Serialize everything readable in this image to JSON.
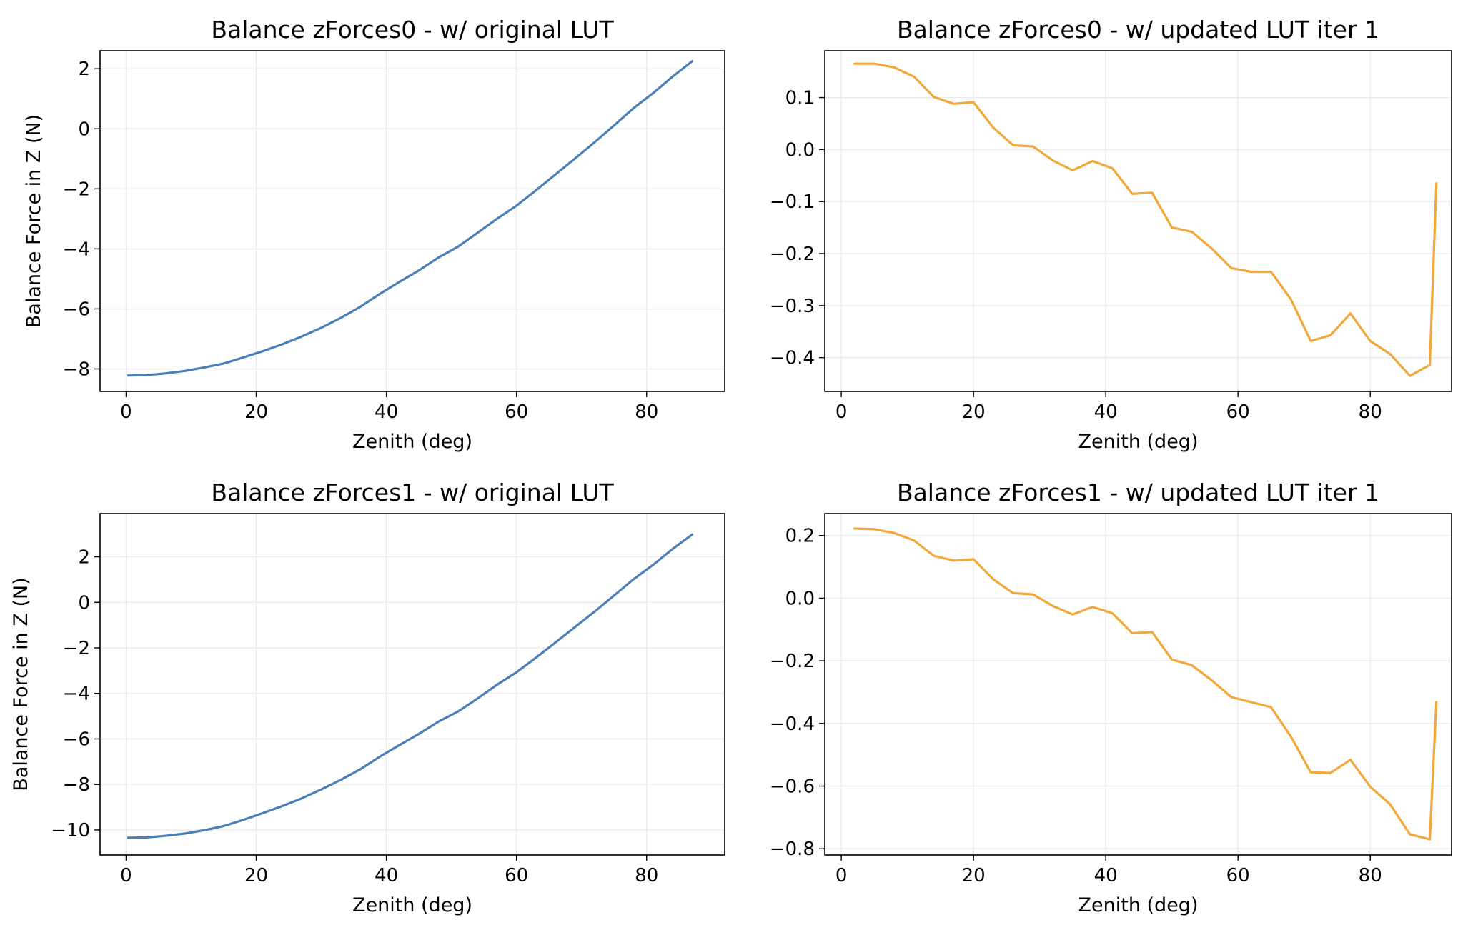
{
  "chart_data": [
    {
      "type": "line",
      "title": "Balance zForces0 - w/ original LUT",
      "xlabel": "Zenith (deg)",
      "ylabel": "Balance Force in Z (N)",
      "xlim": [
        -4,
        92
      ],
      "ylim": [
        -8.75,
        2.6
      ],
      "xticks": [
        0,
        20,
        40,
        60,
        80
      ],
      "xtick_labels": [
        "0",
        "20",
        "40",
        "60",
        "80"
      ],
      "yticks": [
        -8,
        -6,
        -4,
        -2,
        0,
        2
      ],
      "ytick_labels": [
        "−8",
        "−6",
        "−4",
        "−2",
        "0",
        "2"
      ],
      "grid": true,
      "color": "#4a7fb8",
      "series": [
        {
          "x": [
            0.3,
            3,
            6,
            9,
            12,
            15,
            18,
            21,
            24,
            27,
            30,
            33,
            36,
            39,
            42,
            45,
            48,
            51,
            54,
            57,
            60,
            63,
            66,
            69,
            72,
            75,
            78,
            81,
            84,
            87
          ],
          "y": [
            -8.22,
            -8.21,
            -8.15,
            -8.07,
            -7.95,
            -7.82,
            -7.62,
            -7.41,
            -7.18,
            -6.92,
            -6.63,
            -6.3,
            -5.93,
            -5.5,
            -5.1,
            -4.72,
            -4.29,
            -3.93,
            -3.47,
            -3.0,
            -2.56,
            -2.05,
            -1.52,
            -0.99,
            -0.45,
            0.11,
            0.69,
            1.19,
            1.74,
            2.25
          ]
        }
      ]
    },
    {
      "type": "line",
      "title": "Balance zForces0 - w/ updated LUT iter 1",
      "xlabel": "Zenith (deg)",
      "ylabel": "",
      "xlim": [
        -2.5,
        92.3
      ],
      "ylim": [
        -0.465,
        0.19
      ],
      "xticks": [
        0,
        20,
        40,
        60,
        80
      ],
      "xtick_labels": [
        "0",
        "20",
        "40",
        "60",
        "80"
      ],
      "yticks": [
        -0.4,
        -0.3,
        -0.2,
        -0.1,
        0.0,
        0.1
      ],
      "ytick_labels": [
        "−0.4",
        "−0.3",
        "−0.2",
        "−0.1",
        "0.0",
        "0.1"
      ],
      "grid": true,
      "color": "#f2a83a",
      "series": [
        {
          "x": [
            2,
            5,
            8,
            11,
            14,
            17,
            20,
            23,
            26,
            29,
            32,
            35,
            38,
            41,
            44,
            47,
            50,
            53,
            56,
            59,
            62,
            65,
            68,
            71,
            74,
            77,
            80,
            83,
            86,
            89,
            90
          ],
          "y": [
            0.165,
            0.165,
            0.158,
            0.14,
            0.101,
            0.088,
            0.091,
            0.042,
            0.008,
            0.006,
            -0.021,
            -0.04,
            -0.022,
            -0.036,
            -0.085,
            -0.083,
            -0.15,
            -0.158,
            -0.19,
            -0.228,
            -0.235,
            -0.235,
            -0.288,
            -0.368,
            -0.357,
            -0.315,
            -0.368,
            -0.393,
            -0.435,
            -0.414,
            -0.065
          ]
        }
      ]
    },
    {
      "type": "line",
      "title": "Balance zForces1 - w/ original LUT",
      "xlabel": "Zenith (deg)",
      "ylabel": "Balance Force in Z (N)",
      "xlim": [
        -4,
        92
      ],
      "ylim": [
        -11.1,
        3.9
      ],
      "xticks": [
        0,
        20,
        40,
        60,
        80
      ],
      "xtick_labels": [
        "0",
        "20",
        "40",
        "60",
        "80"
      ],
      "yticks": [
        -10,
        -8,
        -6,
        -4,
        -2,
        0,
        2
      ],
      "ytick_labels": [
        "−10",
        "−8",
        "−6",
        "−4",
        "−2",
        "0",
        "2"
      ],
      "grid": true,
      "color": "#4a7fb8",
      "series": [
        {
          "x": [
            0.3,
            3,
            6,
            9,
            12,
            15,
            18,
            21,
            24,
            27,
            30,
            33,
            36,
            39,
            42,
            45,
            48,
            51,
            54,
            57,
            60,
            63,
            66,
            69,
            72,
            75,
            78,
            81,
            84,
            87
          ],
          "y": [
            -10.34,
            -10.33,
            -10.26,
            -10.16,
            -10.01,
            -9.83,
            -9.56,
            -9.26,
            -8.95,
            -8.61,
            -8.22,
            -7.8,
            -7.33,
            -6.78,
            -6.27,
            -5.78,
            -5.24,
            -4.8,
            -4.23,
            -3.62,
            -3.07,
            -2.43,
            -1.76,
            -1.08,
            -0.41,
            0.3,
            1.02,
            1.65,
            2.35,
            2.98
          ]
        }
      ]
    },
    {
      "type": "line",
      "title": "Balance zForces1 - w/ updated LUT iter 1",
      "xlabel": "Zenith (deg)",
      "ylabel": "",
      "xlim": [
        -2.5,
        92.3
      ],
      "ylim": [
        -0.82,
        0.27
      ],
      "xticks": [
        0,
        20,
        40,
        60,
        80
      ],
      "xtick_labels": [
        "0",
        "20",
        "40",
        "60",
        "80"
      ],
      "yticks": [
        -0.8,
        -0.6,
        -0.4,
        -0.2,
        0.0,
        0.2
      ],
      "ytick_labels": [
        "−0.8",
        "−0.6",
        "−0.4",
        "−0.2",
        "0.0",
        "0.2"
      ],
      "grid": true,
      "color": "#f2a83a",
      "series": [
        {
          "x": [
            2,
            5,
            8,
            11,
            14,
            17,
            20,
            23,
            26,
            29,
            32,
            35,
            38,
            41,
            44,
            47,
            50,
            53,
            56,
            59,
            62,
            65,
            68,
            71,
            74,
            77,
            80,
            83,
            86,
            89,
            90
          ],
          "y": [
            0.222,
            0.22,
            0.208,
            0.184,
            0.135,
            0.12,
            0.124,
            0.06,
            0.016,
            0.012,
            -0.025,
            -0.052,
            -0.028,
            -0.048,
            -0.112,
            -0.108,
            -0.196,
            -0.214,
            -0.262,
            -0.316,
            -0.332,
            -0.348,
            -0.442,
            -0.556,
            -0.558,
            -0.516,
            -0.602,
            -0.658,
            -0.754,
            -0.77,
            -0.332
          ]
        }
      ]
    }
  ]
}
